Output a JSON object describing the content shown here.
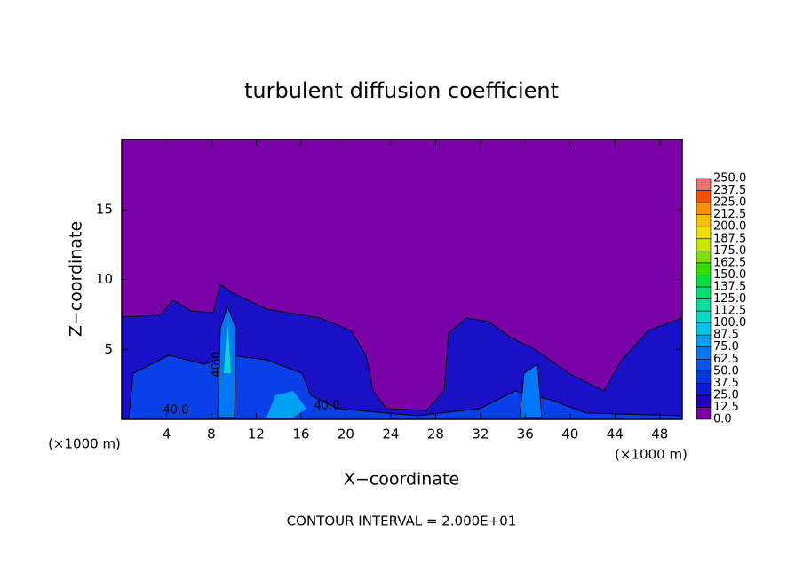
{
  "chart_data": {
    "type": "contour",
    "title": "turbulent diffusion coefficient",
    "x_label": "X−coordinate",
    "y_label": "Z−coordinate",
    "x_unit_left": "(×1000 m)",
    "x_unit_right": "(×1000 m)",
    "footer": "CONTOUR INTERVAL = 2.000E+01",
    "xlim": [
      0,
      50
    ],
    "ylim": [
      0,
      20
    ],
    "xticks": [
      4,
      8,
      12,
      16,
      20,
      24,
      28,
      32,
      36,
      40,
      44,
      48
    ],
    "yticks": [
      5,
      10,
      15
    ],
    "contour_labels": [
      "40.0",
      "40.0",
      "40.0"
    ],
    "colorbar": {
      "levels": [
        {
          "value": 0,
          "label": "0.0"
        },
        {
          "value": 12.5,
          "label": "12.5"
        },
        {
          "value": 25,
          "label": "25.0"
        },
        {
          "value": 37.5,
          "label": "37.5"
        },
        {
          "value": 50,
          "label": "50.0"
        },
        {
          "value": 62.5,
          "label": "62.5"
        },
        {
          "value": 75,
          "label": "75.0"
        },
        {
          "value": 87.5,
          "label": "87.5"
        },
        {
          "value": 100,
          "label": "100.0"
        },
        {
          "value": 112.5,
          "label": "112.5"
        },
        {
          "value": 125,
          "label": "125.0"
        },
        {
          "value": 137.5,
          "label": "137.5"
        },
        {
          "value": 150,
          "label": "150.0"
        },
        {
          "value": 162.5,
          "label": "162.5"
        },
        {
          "value": 175,
          "label": "175.0"
        },
        {
          "value": 187.5,
          "label": "187.5"
        },
        {
          "value": 200,
          "label": "200.0"
        },
        {
          "value": 212.5,
          "label": "212.5"
        },
        {
          "value": 225,
          "label": "225.0"
        },
        {
          "value": 237.5,
          "label": "237.5"
        },
        {
          "value": 250,
          "label": "250.0"
        }
      ],
      "colors": [
        "#7a00a8",
        "#2200b8",
        "#0a1ad0",
        "#0038e6",
        "#0058f0",
        "#0078f8",
        "#00a0f4",
        "#00c4e8",
        "#00dcc8",
        "#00e0a0",
        "#00e070",
        "#00e040",
        "#30e000",
        "#80e000",
        "#c8e800",
        "#f0e000",
        "#f8c000",
        "#f89000",
        "#f85000",
        "#f07070"
      ]
    }
  }
}
